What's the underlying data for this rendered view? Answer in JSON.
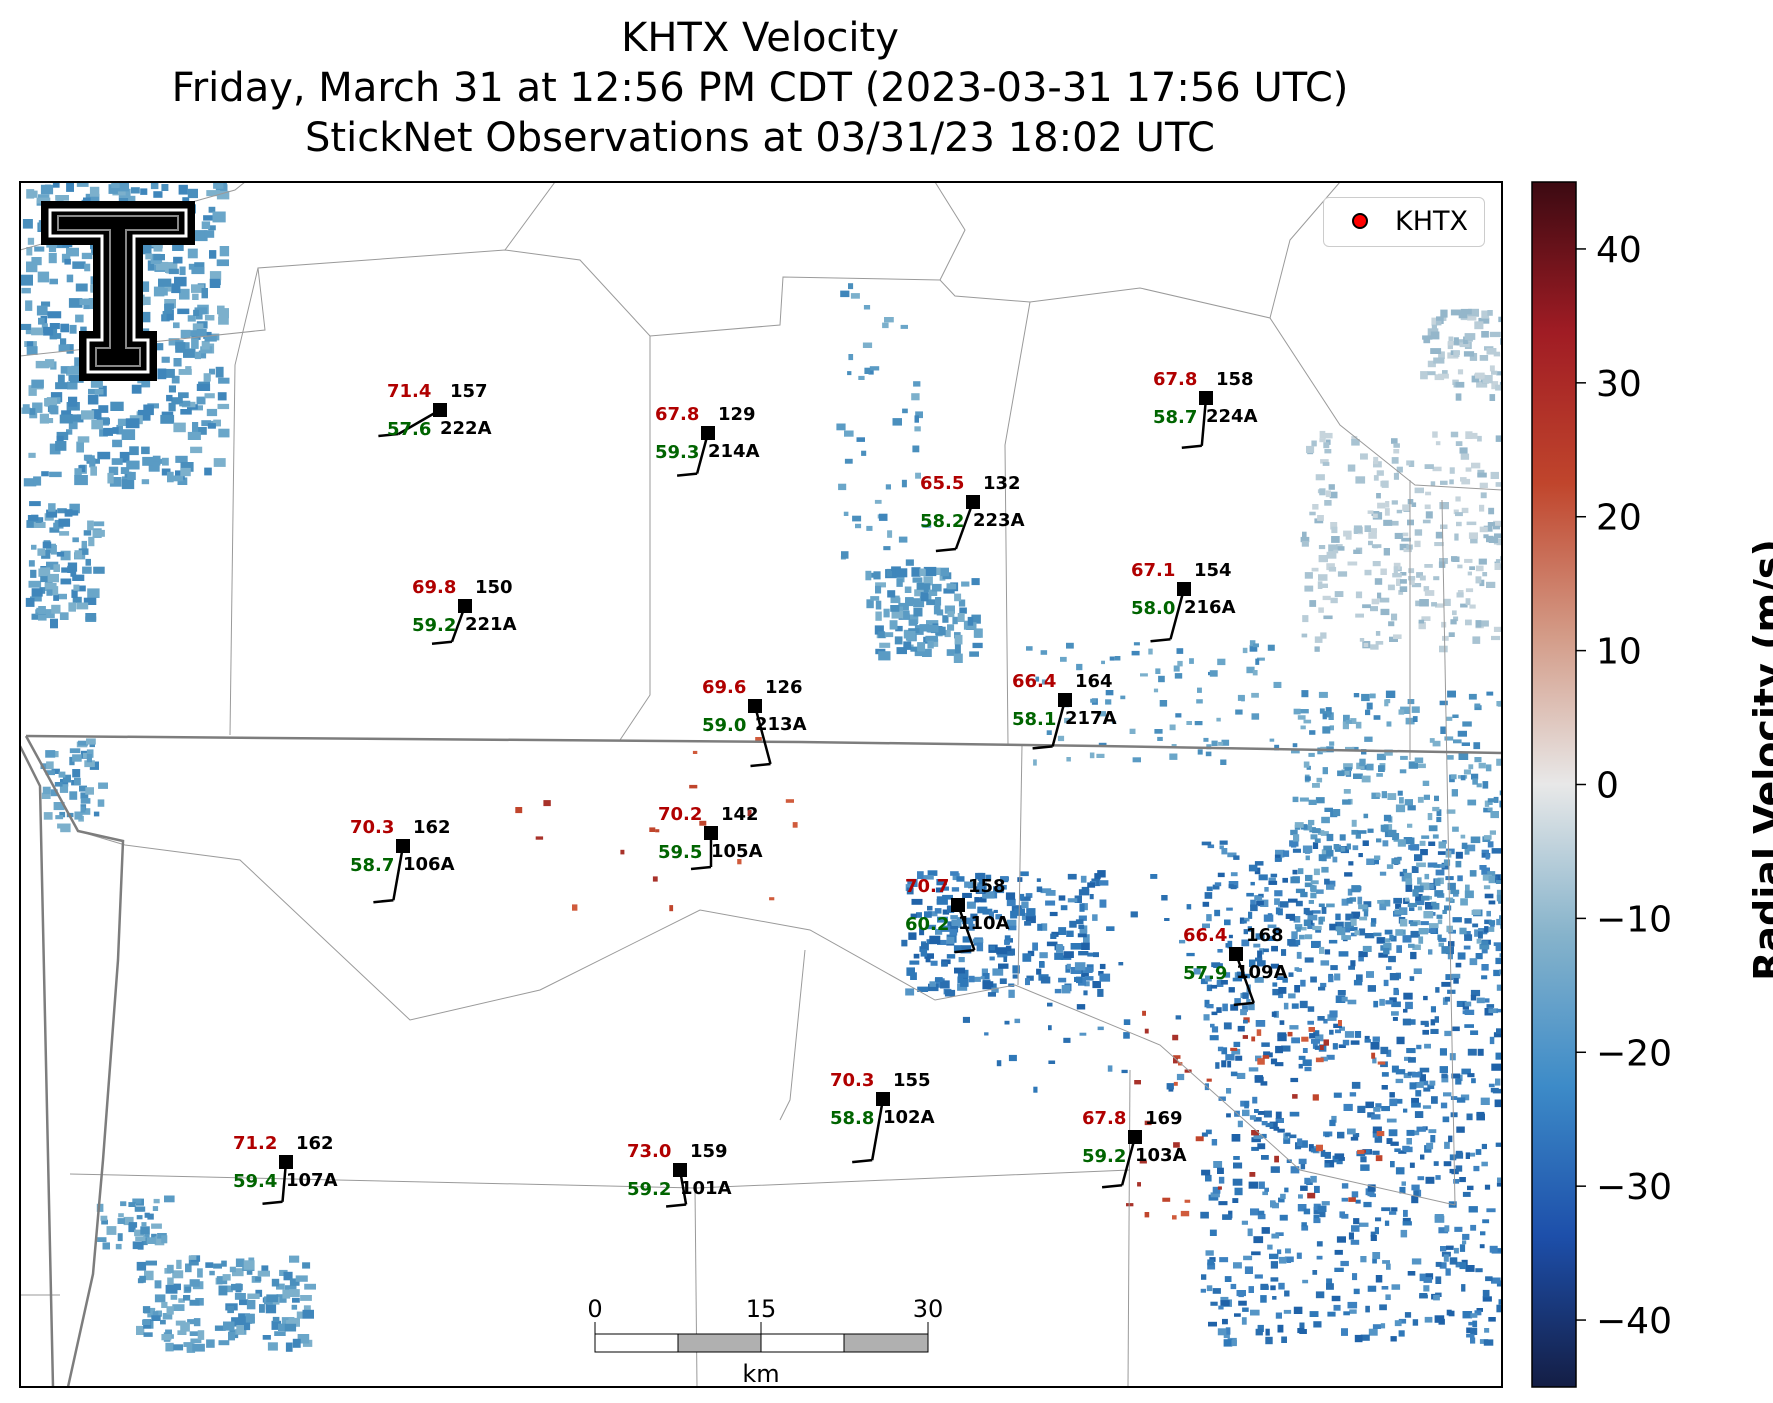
{
  "title": {
    "line1": "KHTX Velocity",
    "line2": "Friday, March 31 at 12:56 PM CDT (2023-03-31 17:56 UTC)",
    "line3": "StickNet Observations at 03/31/23 18:02 UTC"
  },
  "legend": {
    "label": "KHTX",
    "marker_color": "#ff0000"
  },
  "colorbar": {
    "label": "Radial Velocity (m/s)",
    "ticks": [
      "40",
      "30",
      "20",
      "10",
      "0",
      "−10",
      "−20",
      "−30",
      "−40"
    ],
    "range": [
      -45,
      45
    ],
    "stops": [
      "#141e45",
      "#1d4faa",
      "#3d8bc8",
      "#86b3cb",
      "#e8e8e8",
      "#d39a86",
      "#c0452c",
      "#a01c24",
      "#3c0a12"
    ]
  },
  "scalebar": {
    "ticks": [
      "0",
      "15",
      "30"
    ],
    "unit": "km"
  },
  "logo": {
    "name": "university-logo",
    "color": "#000000"
  },
  "stations": [
    {
      "id": "222A",
      "temp": "71.4",
      "dew": "57.6",
      "pressure": "157"
    },
    {
      "id": "214A",
      "temp": "67.8",
      "dew": "59.3",
      "pressure": "129"
    },
    {
      "id": "223A",
      "temp": "65.5",
      "dew": "58.2",
      "pressure": "132"
    },
    {
      "id": "224A",
      "temp": "67.8",
      "dew": "58.7",
      "pressure": "158"
    },
    {
      "id": "221A",
      "temp": "69.8",
      "dew": "59.2",
      "pressure": "150"
    },
    {
      "id": "216A",
      "temp": "67.1",
      "dew": "58.0",
      "pressure": "154"
    },
    {
      "id": "213A",
      "temp": "69.6",
      "dew": "59.0",
      "pressure": "126"
    },
    {
      "id": "217A",
      "temp": "66.4",
      "dew": "58.1",
      "pressure": "164"
    },
    {
      "id": "106A",
      "temp": "70.3",
      "dew": "58.7",
      "pressure": "162"
    },
    {
      "id": "105A",
      "temp": "70.2",
      "dew": "59.5",
      "pressure": "142"
    },
    {
      "id": "110A",
      "temp": "70.7",
      "dew": "60.2",
      "pressure": "158"
    },
    {
      "id": "109A",
      "temp": "66.4",
      "dew": "57.9",
      "pressure": "168"
    },
    {
      "id": "102A",
      "temp": "70.3",
      "dew": "58.8",
      "pressure": "155"
    },
    {
      "id": "103A",
      "temp": "67.8",
      "dew": "59.2",
      "pressure": "169"
    },
    {
      "id": "107A",
      "temp": "71.2",
      "dew": "59.4",
      "pressure": "162"
    },
    {
      "id": "101A",
      "temp": "73.0",
      "dew": "59.2",
      "pressure": "159"
    }
  ]
}
